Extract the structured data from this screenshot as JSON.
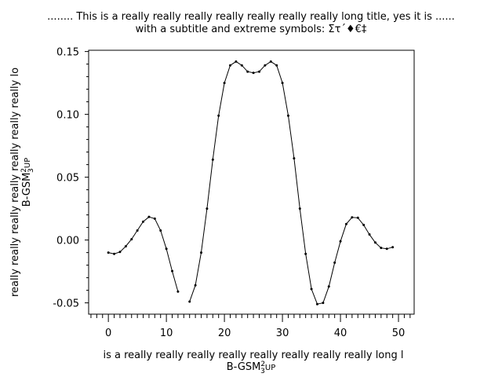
{
  "chart_data": {
    "type": "line",
    "title": "........ This is a really really really really really really really long title, yes it is ......",
    "subtitle": "with a subtitle and extreme symbols: Στ΄♦€‡",
    "xlabel": "is a really really really really really really really really long l",
    "xlabel_line2": "B-GSM",
    "xlabel_sup": "2",
    "xlabel_sub": "3",
    "xlabel_tail": "UP",
    "ylabel": "really really really really really really really lo",
    "ylabel_line2": "B-GSM",
    "ylabel_sup": "2",
    "ylabel_sub": "3",
    "ylabel_tail": "UP",
    "xlim": [
      -3.4,
      52.7
    ],
    "ylim": [
      -0.059,
      0.151
    ],
    "xticks": [
      0,
      10,
      20,
      30,
      40,
      50
    ],
    "xtick_labels": [
      "0",
      "10",
      "20",
      "30",
      "40",
      "50"
    ],
    "yticks": [
      0.15,
      0.1,
      0.05,
      0.0,
      -0.05
    ],
    "ytick_labels": [
      "0.15",
      "0.10",
      "0.05",
      "0.00",
      "-0.05"
    ],
    "grid": false,
    "line_color": "#000000",
    "marker": "dot",
    "x": [
      0,
      1,
      2,
      3,
      4,
      5,
      6,
      7,
      8,
      9,
      10,
      11,
      12,
      13,
      14,
      15,
      16,
      17,
      18,
      19,
      20,
      21,
      22,
      23,
      24,
      25,
      26,
      27,
      28,
      29,
      30,
      31,
      32,
      33,
      34,
      35,
      36,
      37,
      38,
      39,
      40,
      41,
      42,
      43,
      44,
      45,
      46,
      47,
      48,
      49
    ],
    "y": [
      -0.01,
      -0.011,
      -0.0095,
      -0.005,
      0.0006,
      0.0076,
      0.0146,
      0.0184,
      0.017,
      0.0076,
      -0.007,
      -0.0247,
      -0.041,
      null,
      -0.049,
      -0.036,
      -0.01,
      0.025,
      0.064,
      0.099,
      0.125,
      0.139,
      0.142,
      0.139,
      0.134,
      0.133,
      0.134,
      0.139,
      0.142,
      0.139,
      0.125,
      0.099,
      0.065,
      0.025,
      -0.011,
      -0.039,
      -0.051,
      -0.05,
      -0.037,
      -0.018,
      -0.001,
      0.0127,
      0.018,
      0.0177,
      0.012,
      0.0044,
      -0.002,
      -0.0063,
      -0.007,
      -0.0057
    ]
  }
}
